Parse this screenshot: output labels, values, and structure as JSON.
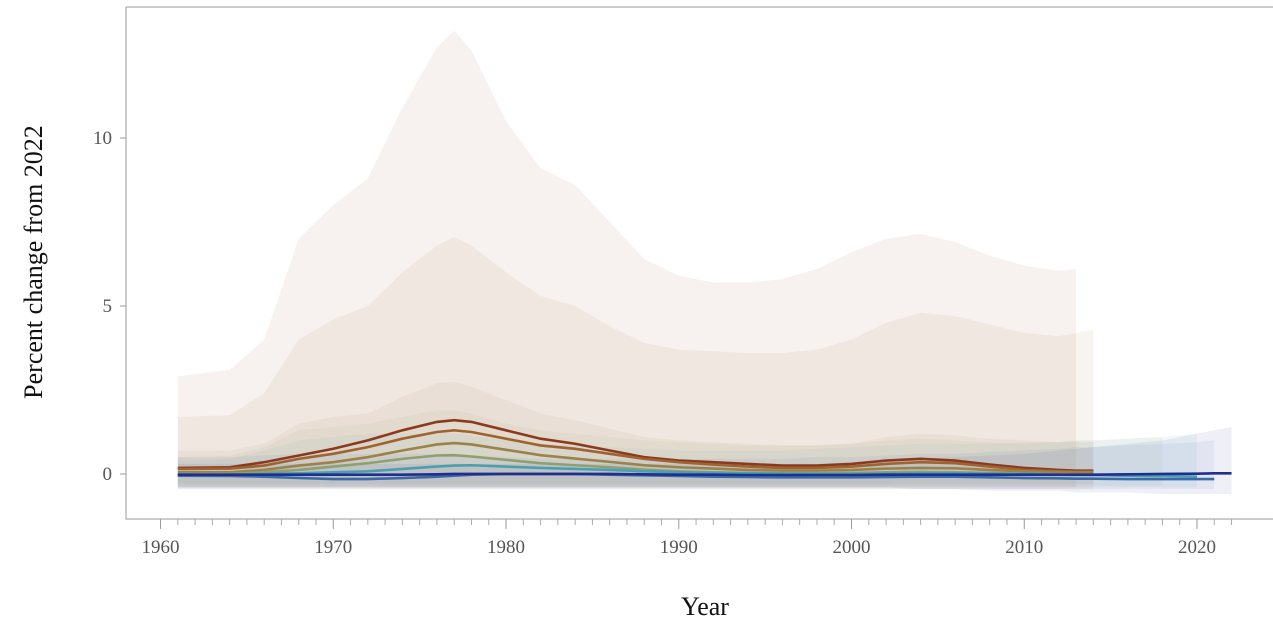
{
  "chart_data": {
    "type": "line",
    "xlabel": "Year",
    "ylabel": "Percent change from 2022",
    "x": [
      1961,
      1964,
      1966,
      1968,
      1970,
      1972,
      1974,
      1976,
      1977,
      1978,
      1980,
      1982,
      1984,
      1986,
      1988,
      1990,
      1992,
      1994,
      1996,
      1998,
      2000,
      2002,
      2004,
      2006,
      2008,
      2010,
      2012,
      2013,
      2014,
      2016,
      2018,
      2020,
      2021,
      2022
    ],
    "xlim": [
      1958,
      2024.4
    ],
    "xticks": [
      1960,
      1970,
      1980,
      1990,
      2000,
      2010,
      2020
    ],
    "xminorticks": [
      1961,
      1962,
      1963,
      1964,
      1965,
      1966,
      1967,
      1968,
      1969,
      1971,
      1972,
      1973,
      1974,
      1975,
      1976,
      1977,
      1978,
      1979,
      1981,
      1982,
      1983,
      1984,
      1985,
      1986,
      1987,
      1988,
      1989,
      1991,
      1992,
      1993,
      1994,
      1995,
      1996,
      1997,
      1998,
      1999,
      2001,
      2002,
      2003,
      2004,
      2005,
      2006,
      2007,
      2008,
      2009,
      2011,
      2012,
      2013,
      2014,
      2015,
      2016,
      2017,
      2018,
      2019,
      2021,
      2022
    ],
    "ylim": [
      -1.34,
      13.9
    ],
    "yticks": [
      0,
      5,
      10
    ],
    "series": [
      {
        "color": "#8b3a1e",
        "values": [
          0.18,
          0.2,
          0.35,
          0.55,
          0.75,
          1.0,
          1.3,
          1.55,
          1.6,
          1.55,
          1.3,
          1.05,
          0.9,
          0.7,
          0.5,
          0.4,
          0.35,
          0.3,
          0.25,
          0.25,
          0.3,
          0.4,
          0.45,
          0.4,
          0.28,
          0.18,
          0.12,
          0.1,
          0.1,
          null,
          null,
          null,
          null,
          null
        ],
        "upper": [
          2.9,
          3.1,
          4.0,
          7.0,
          8.0,
          8.8,
          10.9,
          12.7,
          13.2,
          12.6,
          10.5,
          9.1,
          8.6,
          7.5,
          6.4,
          5.9,
          5.7,
          5.7,
          5.8,
          6.1,
          6.6,
          7.0,
          7.15,
          6.9,
          6.5,
          6.2,
          6.05,
          6.1,
          null,
          null,
          null,
          null,
          null,
          null
        ],
        "lower": [
          -0.4,
          -0.4,
          -0.4,
          -0.4,
          -0.4,
          -0.4,
          -0.4,
          -0.4,
          -0.4,
          -0.4,
          -0.4,
          -0.4,
          -0.4,
          -0.4,
          -0.4,
          -0.4,
          -0.4,
          -0.4,
          -0.4,
          -0.4,
          -0.4,
          -0.4,
          -0.4,
          -0.4,
          -0.4,
          -0.4,
          -0.4,
          -0.4,
          null,
          null,
          null,
          null,
          null,
          null
        ]
      },
      {
        "color": "#a0622f",
        "values": [
          0.15,
          0.16,
          0.25,
          0.45,
          0.6,
          0.8,
          1.05,
          1.25,
          1.3,
          1.25,
          1.05,
          0.85,
          0.75,
          0.6,
          0.45,
          0.35,
          0.28,
          0.22,
          0.18,
          0.18,
          0.22,
          0.3,
          0.35,
          0.32,
          0.22,
          0.12,
          0.08,
          0.07,
          0.07,
          null,
          null,
          null,
          null,
          null
        ],
        "upper": [
          1.7,
          1.75,
          2.4,
          4.0,
          4.6,
          5.0,
          6.0,
          6.8,
          7.05,
          6.8,
          6.0,
          5.3,
          5.0,
          4.4,
          3.9,
          3.7,
          3.65,
          3.6,
          3.6,
          3.7,
          4.0,
          4.5,
          4.8,
          4.7,
          4.45,
          4.2,
          4.1,
          4.2,
          4.3,
          null,
          null,
          null,
          null,
          null
        ],
        "lower": [
          -0.45,
          -0.45,
          -0.45,
          -0.45,
          -0.45,
          -0.45,
          -0.45,
          -0.45,
          -0.45,
          -0.45,
          -0.45,
          -0.45,
          -0.45,
          -0.45,
          -0.45,
          -0.45,
          -0.45,
          -0.45,
          -0.45,
          -0.45,
          -0.45,
          -0.45,
          -0.45,
          -0.45,
          -0.45,
          -0.45,
          -0.45,
          -0.45,
          -0.45,
          null,
          null,
          null,
          null,
          null
        ]
      },
      {
        "color": "#9c8248",
        "values": [
          0.05,
          0.05,
          0.12,
          0.25,
          0.35,
          0.5,
          0.7,
          0.88,
          0.92,
          0.88,
          0.72,
          0.56,
          0.46,
          0.36,
          0.26,
          0.2,
          0.16,
          0.12,
          0.1,
          0.1,
          0.12,
          0.16,
          0.18,
          0.17,
          0.12,
          0.08,
          0.06,
          0.05,
          0.05,
          null,
          null,
          null,
          null,
          null
        ],
        "upper": [
          0.7,
          0.7,
          0.9,
          1.5,
          1.7,
          1.8,
          2.3,
          2.7,
          2.75,
          2.6,
          2.2,
          1.8,
          1.6,
          1.35,
          1.1,
          1.0,
          0.95,
          0.9,
          0.85,
          0.85,
          0.9,
          1.1,
          1.2,
          1.15,
          1.05,
          1.0,
          0.95,
          0.95,
          0.95,
          null,
          null,
          null,
          null,
          null
        ],
        "lower": [
          -0.3,
          -0.3,
          -0.3,
          -0.3,
          -0.3,
          -0.3,
          -0.3,
          -0.3,
          -0.3,
          -0.3,
          -0.3,
          -0.3,
          -0.3,
          -0.3,
          -0.3,
          -0.3,
          -0.3,
          -0.3,
          -0.3,
          -0.3,
          -0.3,
          -0.3,
          -0.3,
          -0.3,
          -0.3,
          -0.3,
          -0.3,
          -0.3,
          -0.3,
          null,
          null,
          null,
          null,
          null
        ]
      },
      {
        "color": "#8fa070",
        "values": [
          0,
          0,
          0.05,
          0.12,
          0.22,
          0.32,
          0.45,
          0.55,
          0.56,
          0.52,
          0.42,
          0.32,
          0.26,
          0.2,
          0.13,
          0.08,
          0.05,
          0.03,
          0.02,
          0.02,
          0.03,
          0.05,
          0.06,
          0.05,
          0.03,
          0.01,
          -0.01,
          -0.02,
          -0.03,
          -0.05,
          -0.06,
          null,
          null,
          null
        ],
        "upper": [
          0.5,
          0.55,
          0.8,
          1.3,
          1.4,
          1.5,
          1.7,
          1.9,
          1.9,
          1.8,
          1.5,
          1.3,
          1.2,
          1.1,
          1.0,
          0.95,
          0.9,
          0.85,
          0.85,
          0.85,
          0.9,
          1.0,
          1.05,
          1.0,
          0.95,
          0.95,
          0.95,
          1.0,
          1.0,
          1.05,
          1.1,
          null,
          null,
          null
        ],
        "lower": [
          -0.35,
          -0.35,
          -0.35,
          -0.35,
          -0.35,
          -0.35,
          -0.35,
          -0.35,
          -0.35,
          -0.35,
          -0.35,
          -0.35,
          -0.35,
          -0.35,
          -0.35,
          -0.35,
          -0.35,
          -0.35,
          -0.35,
          -0.35,
          -0.35,
          -0.35,
          -0.35,
          -0.35,
          -0.35,
          -0.35,
          -0.35,
          -0.35,
          -0.35,
          -0.35,
          -0.35,
          null,
          null,
          null
        ]
      },
      {
        "color": "#4a9fb0",
        "values": [
          -0.02,
          -0.02,
          0,
          0.02,
          0.05,
          0.08,
          0.15,
          0.22,
          0.25,
          0.26,
          0.22,
          0.18,
          0.15,
          0.12,
          0.08,
          0.05,
          0.03,
          0.02,
          0.01,
          0,
          0,
          0.01,
          0.02,
          0.02,
          0.01,
          0,
          -0.02,
          -0.03,
          -0.03,
          -0.05,
          -0.06,
          -0.08,
          null,
          null
        ],
        "upper": [
          0.4,
          0.45,
          0.7,
          1.0,
          1.1,
          1.2,
          1.2,
          1.2,
          1.2,
          1.15,
          1.0,
          0.9,
          0.85,
          0.8,
          0.75,
          0.7,
          0.7,
          0.7,
          0.7,
          0.75,
          0.8,
          0.85,
          0.9,
          0.9,
          0.9,
          0.9,
          0.95,
          1.0,
          1.0,
          1.05,
          1.1,
          1.2,
          null,
          null
        ],
        "lower": [
          -0.4,
          -0.4,
          -0.4,
          -0.4,
          -0.4,
          -0.4,
          -0.4,
          -0.4,
          -0.4,
          -0.4,
          -0.4,
          -0.4,
          -0.4,
          -0.4,
          -0.4,
          -0.4,
          -0.4,
          -0.4,
          -0.4,
          -0.4,
          -0.4,
          -0.4,
          -0.4,
          -0.4,
          -0.4,
          -0.4,
          -0.4,
          -0.4,
          -0.4,
          -0.4,
          -0.4,
          -0.4,
          null,
          null
        ]
      },
      {
        "color": "#3b6aa8",
        "values": [
          -0.05,
          -0.06,
          -0.08,
          -0.12,
          -0.15,
          -0.15,
          -0.12,
          -0.08,
          -0.05,
          -0.02,
          0,
          0,
          0,
          -0.02,
          -0.04,
          -0.06,
          -0.08,
          -0.09,
          -0.1,
          -0.1,
          -0.1,
          -0.09,
          -0.08,
          -0.08,
          -0.1,
          -0.12,
          -0.13,
          -0.14,
          -0.14,
          -0.15,
          -0.15,
          -0.15,
          -0.15,
          null
        ],
        "upper": [
          0.5,
          0.5,
          0.55,
          0.6,
          0.6,
          0.6,
          0.6,
          0.6,
          0.6,
          0.55,
          0.5,
          0.45,
          0.45,
          0.45,
          0.45,
          0.45,
          0.45,
          0.45,
          0.45,
          0.5,
          0.5,
          0.55,
          0.6,
          0.6,
          0.65,
          0.7,
          0.75,
          0.8,
          0.8,
          0.85,
          0.9,
          0.95,
          1.0,
          null
        ],
        "lower": [
          -0.45,
          -0.45,
          -0.45,
          -0.45,
          -0.45,
          -0.45,
          -0.45,
          -0.45,
          -0.45,
          -0.45,
          -0.45,
          -0.45,
          -0.45,
          -0.45,
          -0.45,
          -0.45,
          -0.45,
          -0.45,
          -0.45,
          -0.45,
          -0.45,
          -0.45,
          -0.45,
          -0.45,
          -0.45,
          -0.45,
          -0.45,
          -0.45,
          -0.45,
          -0.45,
          -0.45,
          -0.45,
          -0.45,
          null
        ]
      },
      {
        "color": "#1f2f8f",
        "values": [
          -0.02,
          -0.02,
          -0.02,
          -0.02,
          -0.02,
          -0.02,
          -0.02,
          -0.01,
          0,
          0,
          0,
          0,
          0,
          0,
          -0.01,
          -0.02,
          -0.02,
          -0.03,
          -0.03,
          -0.03,
          -0.03,
          -0.02,
          -0.02,
          -0.02,
          -0.02,
          -0.02,
          -0.02,
          -0.02,
          -0.02,
          -0.01,
          0,
          0.01,
          0.02,
          0.02
        ],
        "upper": [
          0.3,
          0.3,
          0.3,
          0.3,
          0.3,
          0.3,
          0.3,
          0.3,
          0.3,
          0.3,
          0.3,
          0.3,
          0.3,
          0.3,
          0.3,
          0.3,
          0.3,
          0.3,
          0.3,
          0.3,
          0.35,
          0.4,
          0.45,
          0.5,
          0.55,
          0.6,
          0.7,
          0.75,
          0.8,
          0.9,
          1.0,
          1.2,
          1.3,
          1.4
        ],
        "lower": [
          -0.4,
          -0.4,
          -0.4,
          -0.4,
          -0.4,
          -0.4,
          -0.4,
          -0.4,
          -0.4,
          -0.4,
          -0.4,
          -0.4,
          -0.4,
          -0.4,
          -0.4,
          -0.4,
          -0.4,
          -0.4,
          -0.4,
          -0.4,
          -0.4,
          -0.4,
          -0.45,
          -0.45,
          -0.5,
          -0.5,
          -0.5,
          -0.55,
          -0.55,
          -0.55,
          -0.6,
          -0.6,
          -0.6,
          -0.6
        ]
      }
    ]
  }
}
